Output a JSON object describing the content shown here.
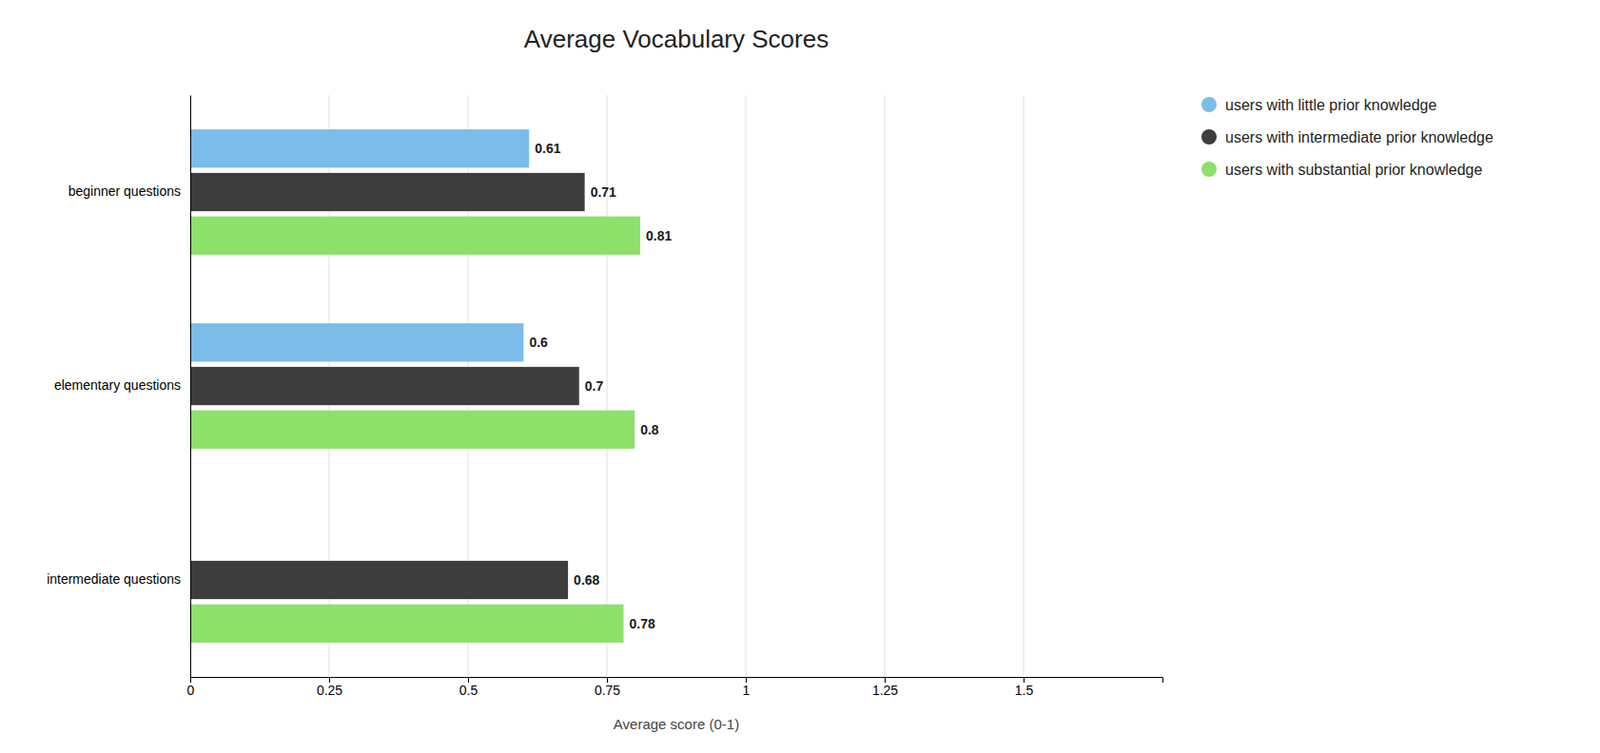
{
  "chart_data": {
    "type": "bar",
    "orientation": "horizontal",
    "title": "Average Vocabulary Scores",
    "xlabel": "Average score (0-1)",
    "categories": [
      "intermediate questions",
      "elementary questions",
      "beginner questions"
    ],
    "series": [
      {
        "name": "users with little prior knowledge",
        "color": "#7bbde8",
        "values": [
          null,
          0.6,
          0.61
        ]
      },
      {
        "name": "users with intermediate prior knowledge",
        "color": "#3d3d3d",
        "values": [
          0.68,
          0.7,
          0.71
        ]
      },
      {
        "name": "users with substantial prior knowledge",
        "color": "#8de06a",
        "values": [
          0.78,
          0.8,
          0.81
        ]
      }
    ],
    "xlim": [
      0,
      1.75
    ],
    "xticks": [
      0,
      0.25,
      0.5,
      0.75,
      1,
      1.25,
      1.5
    ],
    "grid": true,
    "legend": "upper right",
    "data_labels": true
  }
}
